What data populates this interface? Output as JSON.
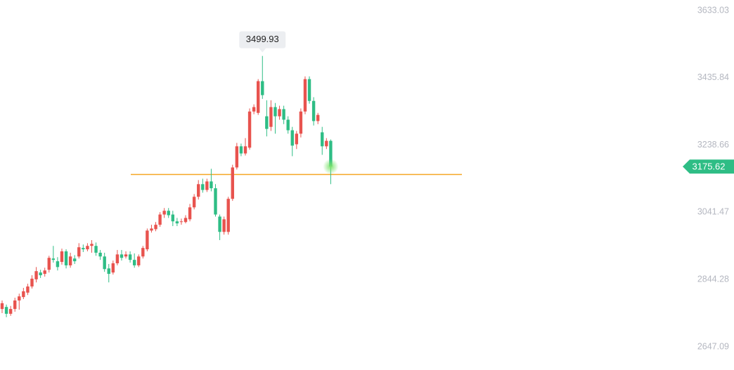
{
  "chart_data": {
    "type": "candlestick",
    "ylim": [
      2647.09,
      3633.03
    ],
    "yticks": [
      2647.09,
      2844.28,
      3041.47,
      3238.66,
      3435.84,
      3633.03
    ],
    "up_color": "#e8534e",
    "down_color": "#2ebd85",
    "open": [
      2758,
      2764,
      2744,
      2758,
      2783,
      2793,
      2806,
      2824,
      2845,
      2865,
      2861,
      2873,
      2906,
      2898,
      2896,
      2927,
      2886,
      2906,
      2912,
      2937,
      2933,
      2943,
      2943,
      2923,
      2912,
      2877,
      2865,
      2892,
      2918,
      2912,
      2918,
      2902,
      2886,
      2912,
      2933,
      2988,
      2992,
      3005,
      3035,
      3046,
      3035,
      3015,
      3013,
      3013,
      3021,
      3056,
      3087,
      3124,
      3107,
      3132,
      3112,
      3029,
      2984,
      2984,
      3081,
      3173,
      3235,
      3214,
      3231,
      3337,
      3333,
      3426,
      3323,
      3292,
      3350,
      3323,
      3344,
      3313,
      3282,
      3241,
      3272,
      3337,
      3432,
      3368,
      3309,
      3276,
      3235,
      3251
    ],
    "high": [
      2783,
      2771,
      2767,
      2791,
      2803,
      2820,
      2832,
      2857,
      2881,
      2873,
      2879,
      2914,
      2943,
      2910,
      2935,
      2933,
      2923,
      2916,
      2951,
      2947,
      2951,
      2960,
      2953,
      2931,
      2923,
      2890,
      2900,
      2931,
      2931,
      2927,
      2927,
      2921,
      2918,
      2943,
      2994,
      3005,
      3013,
      3042,
      3054,
      3054,
      3046,
      3025,
      3023,
      3033,
      3066,
      3095,
      3136,
      3140,
      3140,
      3169,
      3124,
      3035,
      3029,
      3087,
      3181,
      3245,
      3243,
      3259,
      3346,
      3358,
      3432,
      3499.93,
      3370,
      3370,
      3362,
      3354,
      3354,
      3323,
      3292,
      3280,
      3346,
      3440,
      3440,
      3379,
      3333,
      3292,
      3259,
      3255
    ],
    "low": [
      2746,
      2734,
      2738,
      2750,
      2756,
      2787,
      2799,
      2818,
      2836,
      2849,
      2853,
      2865,
      2894,
      2871,
      2888,
      2877,
      2879,
      2890,
      2906,
      2925,
      2927,
      2923,
      2914,
      2902,
      2867,
      2836,
      2859,
      2886,
      2900,
      2906,
      2894,
      2879,
      2881,
      2906,
      2927,
      2982,
      2986,
      2999,
      3025,
      3025,
      3001,
      3001,
      3005,
      3009,
      3015,
      3050,
      3079,
      3099,
      3101,
      3103,
      3029,
      2960,
      2976,
      2976,
      3075,
      3167,
      3206,
      3208,
      3225,
      3329,
      3327,
      3374,
      3264,
      3280,
      3272,
      3313,
      3300,
      3272,
      3206,
      3227,
      3261,
      3329,
      3360,
      3296,
      3300,
      3210,
      3227,
      3124
    ],
    "close": [
      2775,
      2744,
      2758,
      2783,
      2795,
      2810,
      2824,
      2847,
      2869,
      2857,
      2871,
      2908,
      2902,
      2881,
      2927,
      2886,
      2912,
      2898,
      2939,
      2933,
      2943,
      2949,
      2923,
      2912,
      2875,
      2861,
      2892,
      2918,
      2908,
      2918,
      2902,
      2886,
      2912,
      2937,
      2988,
      2994,
      3005,
      3035,
      3046,
      3033,
      3015,
      3009,
      3015,
      3025,
      3056,
      3087,
      3124,
      3107,
      3132,
      3112,
      3035,
      2984,
      3021,
      3081,
      3173,
      3235,
      3214,
      3235,
      3337,
      3350,
      3426,
      3385,
      3286,
      3350,
      3323,
      3344,
      3313,
      3282,
      3237,
      3272,
      3337,
      3432,
      3368,
      3309,
      3327,
      3235,
      3251,
      3175.62
    ],
    "reference_line": 3152.4,
    "reference_color": "#f5a623"
  }
}
